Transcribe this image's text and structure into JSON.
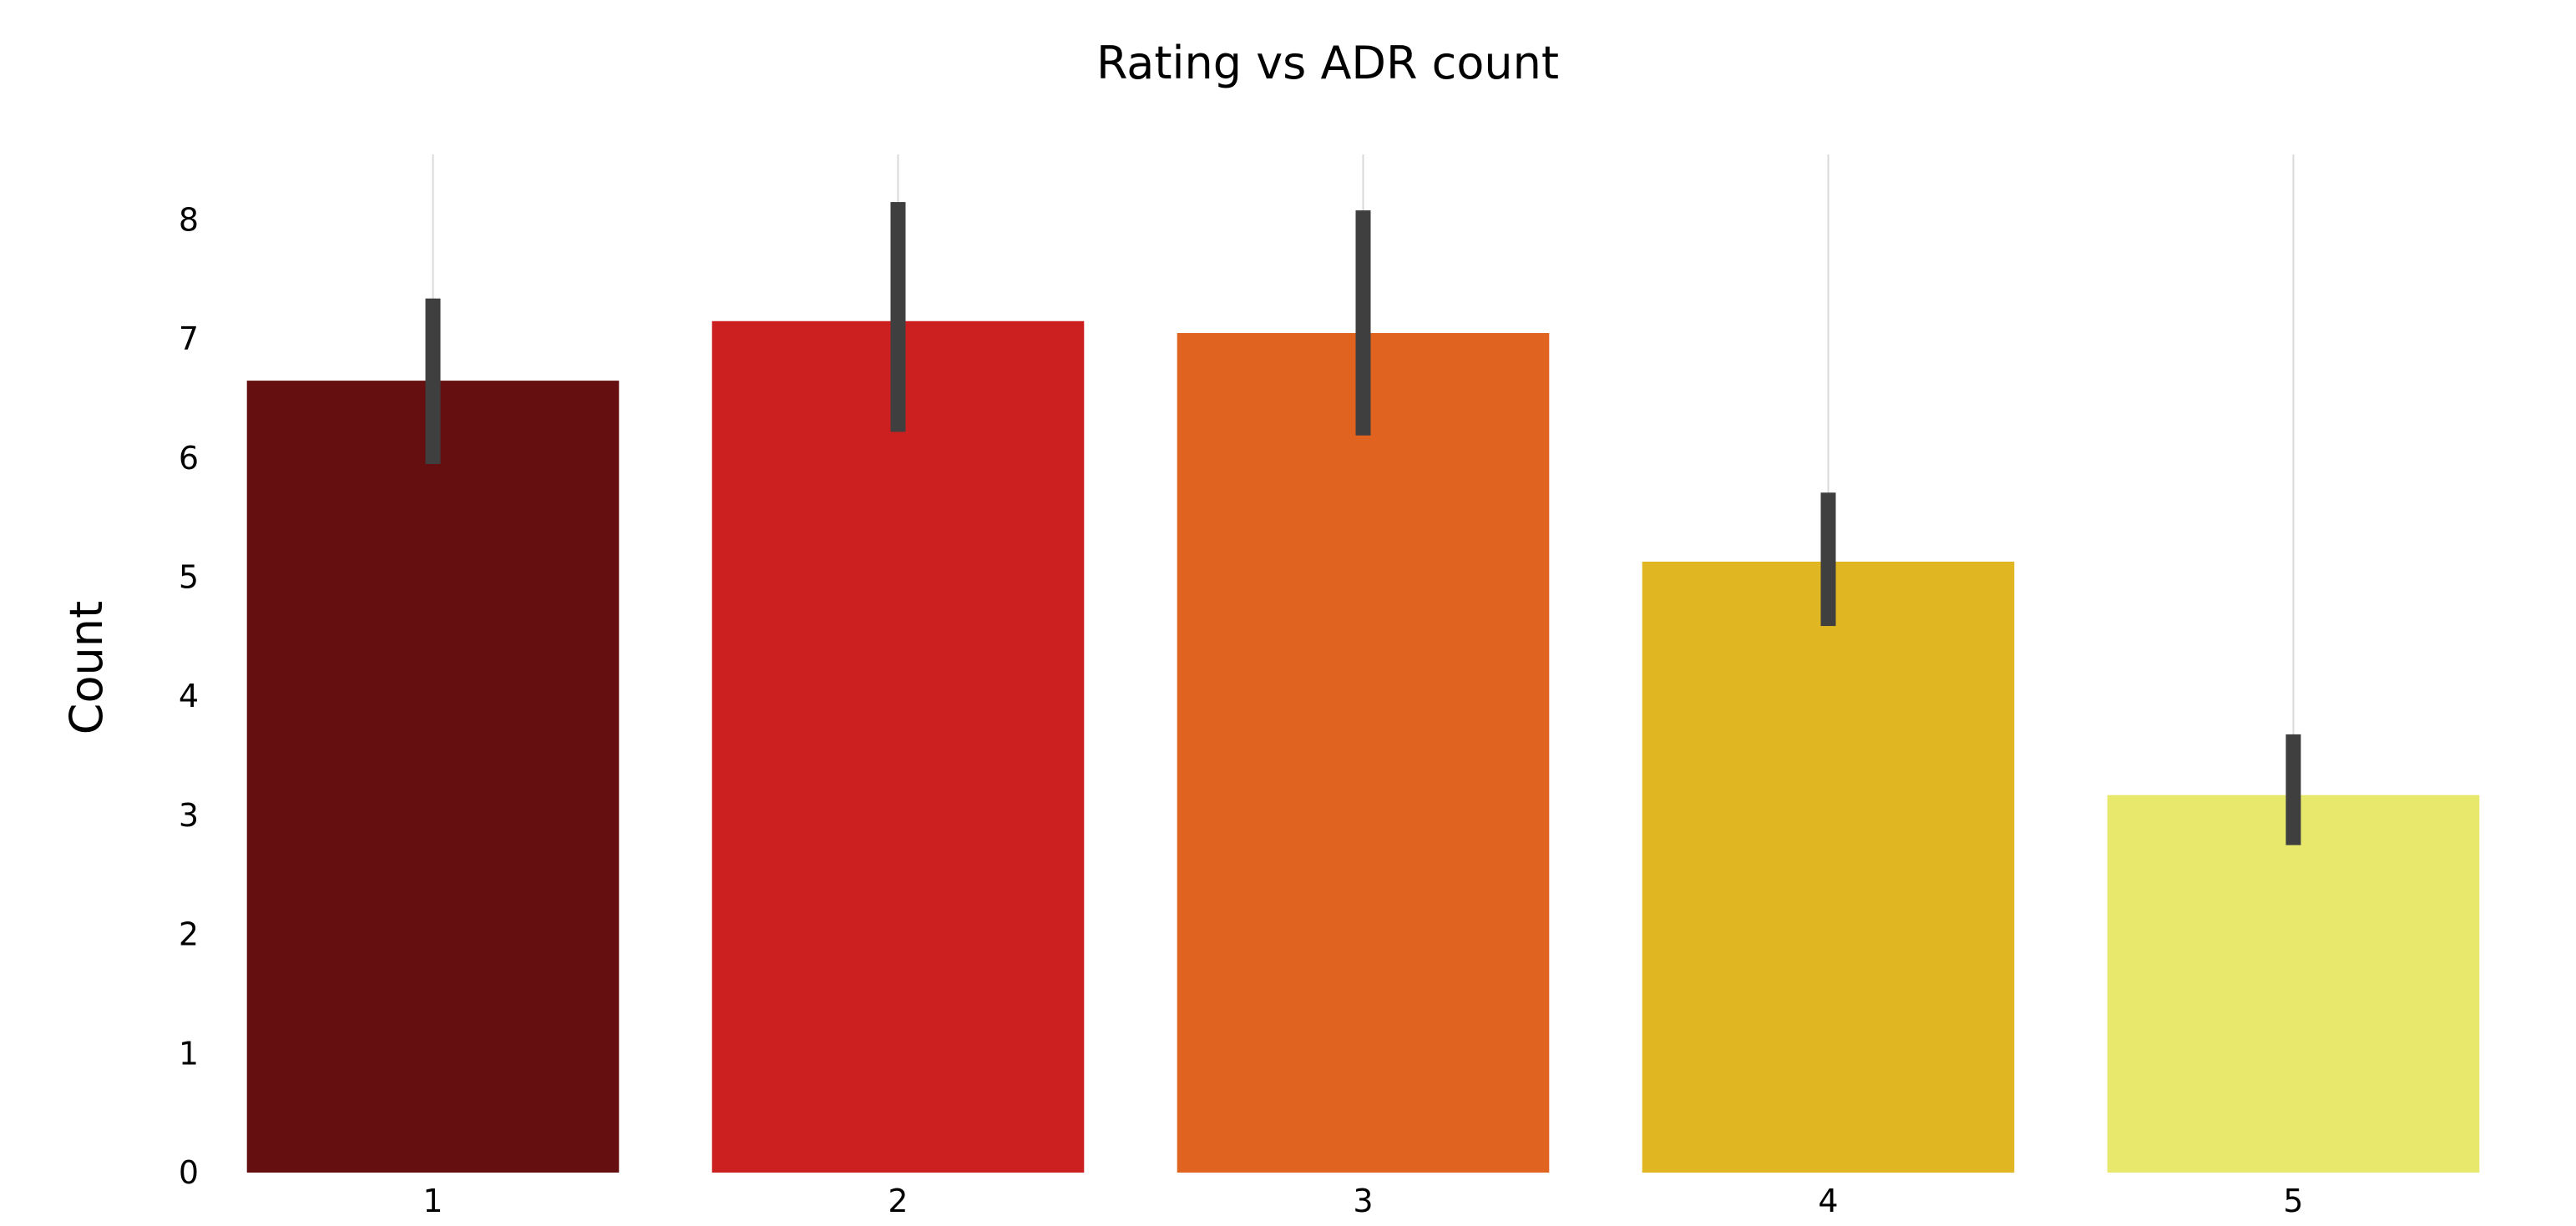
{
  "chart_data": {
    "type": "bar",
    "title": "Rating vs ADR count",
    "xlabel": "",
    "ylabel": "Count",
    "categories": [
      "1",
      "2",
      "3",
      "4",
      "5"
    ],
    "values": [
      6.65,
      7.15,
      7.05,
      5.13,
      3.17
    ],
    "error_bars": [
      {
        "low": 5.95,
        "high": 7.34
      },
      {
        "low": 6.22,
        "high": 8.15
      },
      {
        "low": 6.19,
        "high": 8.08
      },
      {
        "low": 4.59,
        "high": 5.71
      },
      {
        "low": 2.75,
        "high": 3.68
      }
    ],
    "colors": [
      "#660f10",
      "#cc1f1f",
      "#e06320",
      "#e0b622",
      "#e8e86c"
    ],
    "error_bar_color": "#3f3f3f",
    "ylim": [
      0,
      8.55
    ],
    "yticks": [
      0,
      1,
      2,
      3,
      4,
      5,
      6,
      7,
      8
    ],
    "grid": "vertical lines at categories",
    "legend": "none"
  }
}
